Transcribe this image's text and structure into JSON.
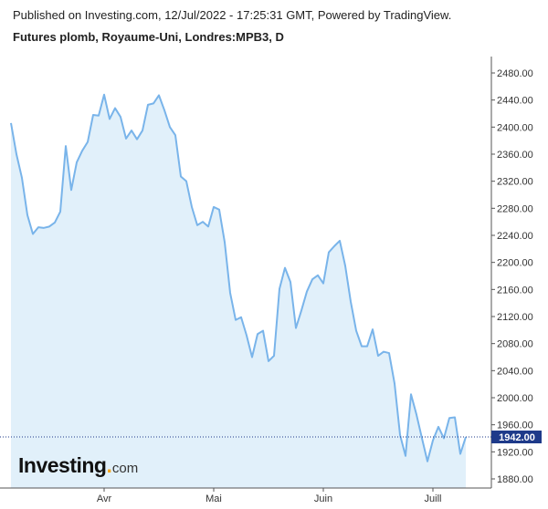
{
  "header": {
    "published": "Published on Investing.com, 12/Jul/2022 - 17:25:31 GMT, Powered by TradingView.",
    "title": "Futures plomb, Royaume-Uni, Londres:MPB3, D"
  },
  "logo": {
    "main": "Investing",
    "dot": ".",
    "suffix": "com"
  },
  "colors": {
    "line": "#79b4ea",
    "fill": "#e1f0fa",
    "last_price_bg": "#1e3a8a",
    "dotted_line": "#1e3a8a"
  },
  "last_price_label": "1942.00",
  "chart_data": {
    "type": "area",
    "title": "Futures plomb, Royaume-Uni, Londres:MPB3, D",
    "xlabel": "",
    "ylabel": "",
    "ylim": [
      1868,
      2500
    ],
    "y_ticks": [
      1880,
      1920,
      1960,
      2000,
      2040,
      2080,
      2120,
      2160,
      2200,
      2240,
      2280,
      2320,
      2360,
      2400,
      2440,
      2480
    ],
    "y_tick_labels": [
      "1880.00",
      "1920.00",
      "1960.00",
      "2000.00",
      "2040.00",
      "2080.00",
      "2120.00",
      "2160.00",
      "2200.00",
      "2240.00",
      "2280.00",
      "2320.00",
      "2360.00",
      "2400.00",
      "2440.00",
      "2480.00"
    ],
    "x_ticks": [
      {
        "label": "Avr",
        "index": 17
      },
      {
        "label": "Mai",
        "index": 37
      },
      {
        "label": "Juin",
        "index": 57
      },
      {
        "label": "Juill",
        "index": 77
      }
    ],
    "grid": false,
    "last_price": 1942,
    "series": [
      {
        "values": [
          2406,
          2360,
          2325,
          2270,
          2242,
          2252,
          2251,
          2253,
          2259,
          2275,
          2372,
          2307,
          2348,
          2365,
          2378,
          2418,
          2417,
          2448,
          2412,
          2428,
          2415,
          2383,
          2395,
          2382,
          2395,
          2433,
          2435,
          2447,
          2425,
          2400,
          2388,
          2327,
          2320,
          2282,
          2255,
          2260,
          2253,
          2282,
          2278,
          2230,
          2155,
          2115,
          2119,
          2092,
          2060,
          2094,
          2099,
          2054,
          2062,
          2161,
          2192,
          2171,
          2103,
          2129,
          2157,
          2175,
          2181,
          2169,
          2215,
          2224,
          2232,
          2195,
          2142,
          2099,
          2076,
          2076,
          2101,
          2062,
          2068,
          2066,
          2021,
          1945,
          1914,
          2005,
          1975,
          1940,
          1906,
          1937,
          1957,
          1940,
          1970,
          1971,
          1917,
          1942
        ]
      }
    ]
  }
}
